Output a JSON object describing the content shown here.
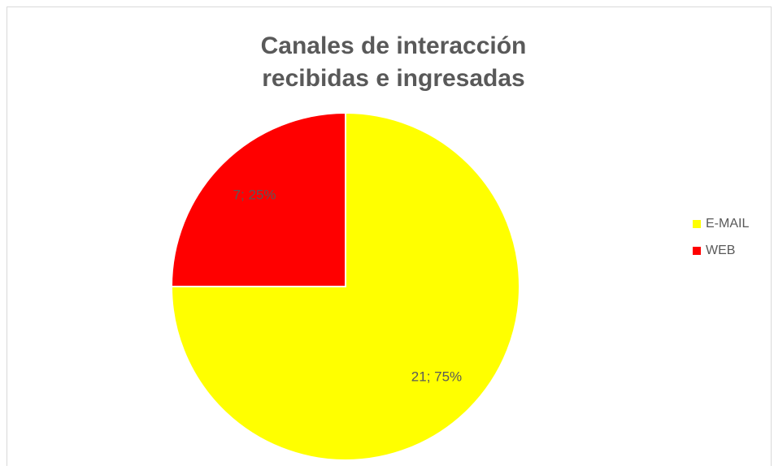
{
  "chart_data": {
    "type": "pie",
    "title": [
      "Canales de interacción",
      "recibidas e ingresadas"
    ],
    "categories": [
      "E-MAIL",
      "WEB"
    ],
    "values": [
      21,
      7
    ],
    "value_labels": [
      "21; 75%",
      "7; 25%"
    ],
    "colors": [
      "#ffff00",
      "#ff0000"
    ],
    "legend": "right"
  }
}
